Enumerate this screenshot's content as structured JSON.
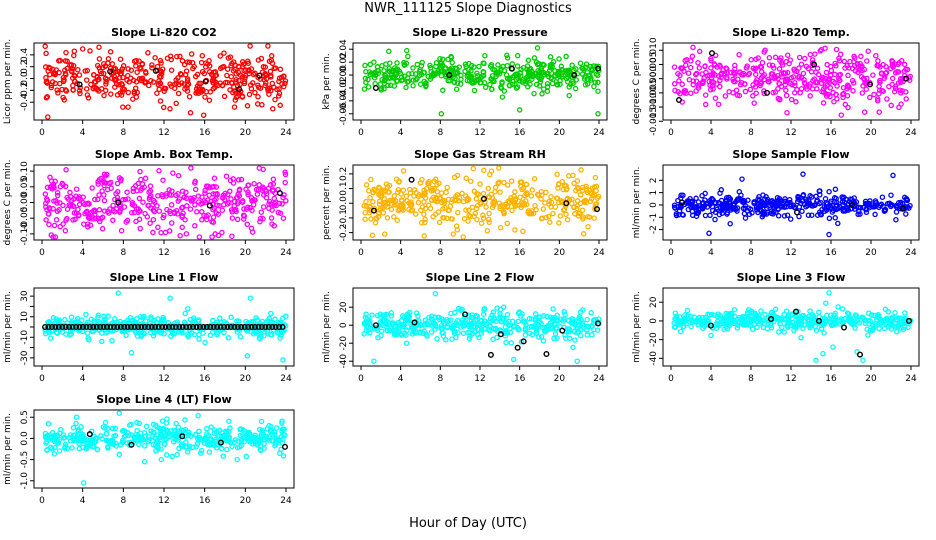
{
  "title": "NWR_111125  Slope Diagnostics",
  "xlabel": "Hour of Day (UTC)",
  "chart_data": [
    {
      "type": "scatter",
      "title": "Slope Li-820 CO2",
      "ylabel": "Licor ppm per min.",
      "color": "#ff0000",
      "xlim": [
        0,
        24
      ],
      "xticks": [
        0,
        4,
        8,
        12,
        16,
        20,
        24
      ],
      "ylim": [
        -0.65,
        0.55
      ],
      "yticks": [
        -0.4,
        -0.2,
        0.0,
        0.2,
        0.4
      ],
      "ytick_labels": [
        "-0.4",
        "-0.2",
        "0.0",
        "0.2",
        "0.4"
      ],
      "spread": 0.2,
      "clip": [
        -0.65,
        0.55
      ],
      "outliers": [
        {
          "x": 4,
          "y": 0.5
        },
        {
          "x": 15.9,
          "y": -0.62
        },
        {
          "x": 13.2,
          "y": -0.42
        }
      ],
      "black": [
        {
          "x": 3.7,
          "y": -0.1
        },
        {
          "x": 6.7,
          "y": 0.12
        },
        {
          "x": 11.2,
          "y": 0.13
        },
        {
          "x": 16.1,
          "y": -0.05
        },
        {
          "x": 19.4,
          "y": -0.18
        },
        {
          "x": 21.4,
          "y": 0.05
        }
      ]
    },
    {
      "type": "scatter",
      "title": "Slope Li-820 Pressure",
      "ylabel": "kPa per min.",
      "color": "#00cc00",
      "xlim": [
        0,
        24
      ],
      "xticks": [
        0,
        4,
        8,
        12,
        16,
        20,
        24
      ],
      "ylim": [
        -0.065,
        0.045
      ],
      "yticks": [
        -0.06,
        -0.04,
        -0.02,
        0.0,
        0.02,
        0.04
      ],
      "ytick_labels": [
        "-0.06",
        "-0.04",
        "-0.02",
        "0.00",
        "0.02",
        "0.04"
      ],
      "spread": 0.012,
      "clip": [
        -0.065,
        0.045
      ],
      "outliers": [
        {
          "x": 17.8,
          "y": 0.042
        },
        {
          "x": 8.1,
          "y": -0.06
        },
        {
          "x": 16,
          "y": -0.054
        },
        {
          "x": 23.9,
          "y": -0.06
        },
        {
          "x": 15.8,
          "y": 0.03
        }
      ],
      "black": [
        {
          "x": 1.5,
          "y": -0.02
        },
        {
          "x": 8.9,
          "y": 0.0
        },
        {
          "x": 15.2,
          "y": 0.01
        },
        {
          "x": 21.5,
          "y": 0.0
        },
        {
          "x": 23.9,
          "y": 0.01
        }
      ]
    },
    {
      "type": "scatter",
      "title": "Slope Li-820 Temp.",
      "ylabel": "degrees C per min.",
      "color": "#ff00ff",
      "xlim": [
        0,
        24
      ],
      "xticks": [
        0,
        4,
        8,
        12,
        16,
        20,
        24
      ],
      "ylim": [
        -0.0135,
        0.0115
      ],
      "yticks": [
        -0.015,
        -0.01,
        -0.005,
        0.0,
        0.005,
        0.01
      ],
      "ytick_labels": [
        "-0.015",
        "-0.010",
        "-0.005",
        "0.000",
        "0.005",
        "0.010"
      ],
      "spread": 0.0045,
      "clip": [
        -0.0135,
        0.0115
      ],
      "outliers": [
        {
          "x": 11.6,
          "y": -0.012
        },
        {
          "x": 2.2,
          "y": 0.011
        }
      ],
      "black": [
        {
          "x": 0.8,
          "y": -0.0075
        },
        {
          "x": 4.1,
          "y": 0.009
        },
        {
          "x": 9.6,
          "y": -0.005
        },
        {
          "x": 14.3,
          "y": 0.005
        },
        {
          "x": 19.9,
          "y": -0.002
        },
        {
          "x": 23.5,
          "y": 0.0
        }
      ]
    },
    {
      "type": "scatter",
      "title": "Slope Amb. Box Temp.",
      "ylabel": "degrees C per min.",
      "color": "#ff00ff",
      "xlim": [
        0,
        24
      ],
      "xticks": [
        0,
        4,
        8,
        12,
        16,
        20,
        24
      ],
      "ylim": [
        -0.11,
        0.11
      ],
      "yticks": [
        -0.1,
        -0.05,
        0.0,
        0.05,
        0.1
      ],
      "ytick_labels": [
        "-0.10",
        "-0.05",
        "0.00",
        "0.05",
        "0.10"
      ],
      "spread": 0.045,
      "clip": [
        -0.11,
        0.11
      ],
      "outliers": [
        {
          "x": 14.2,
          "y": -0.1
        },
        {
          "x": 2.3,
          "y": -0.09
        }
      ],
      "black": [
        {
          "x": 7.5,
          "y": 0.0
        },
        {
          "x": 16.5,
          "y": -0.01
        },
        {
          "x": 23.4,
          "y": 0.03
        }
      ]
    },
    {
      "type": "scatter",
      "title": "Slope Gas Stream RH",
      "ylabel": "percent per min.",
      "color": "#ffb300",
      "xlim": [
        0,
        24
      ],
      "xticks": [
        0,
        4,
        8,
        12,
        16,
        20,
        24
      ],
      "ylim": [
        -0.23,
        0.24
      ],
      "yticks": [
        -0.2,
        -0.1,
        0.0,
        0.1,
        0.2
      ],
      "ytick_labels": [
        "-0.2",
        "-0.1",
        "0.0",
        "0.1",
        "0.2"
      ],
      "spread": 0.09,
      "clip": [
        -0.23,
        0.24
      ],
      "outliers": [
        {
          "x": 4.3,
          "y": 0.22
        },
        {
          "x": 2.4,
          "y": -0.21
        },
        {
          "x": 9.3,
          "y": -0.21
        }
      ],
      "black": [
        {
          "x": 1.3,
          "y": -0.05
        },
        {
          "x": 5.1,
          "y": 0.16
        },
        {
          "x": 12.4,
          "y": 0.03
        },
        {
          "x": 20.7,
          "y": 0.0
        },
        {
          "x": 23.8,
          "y": -0.04
        }
      ]
    },
    {
      "type": "scatter",
      "title": "Slope Sample Flow",
      "ylabel": "ml/min per min.",
      "color": "#0000ff",
      "xlim": [
        0,
        24
      ],
      "xticks": [
        0,
        4,
        8,
        12,
        16,
        20,
        24
      ],
      "ylim": [
        -2.6,
        3.0
      ],
      "yticks": [
        -2,
        -1,
        0,
        1,
        2
      ],
      "ytick_labels": [
        "-2",
        "-1",
        "0",
        "1",
        "2"
      ],
      "spread": 0.45,
      "clip": [
        -2.6,
        3.0
      ],
      "outliers": [
        {
          "x": 3.8,
          "y": -2.3
        },
        {
          "x": 15.8,
          "y": -2.4
        },
        {
          "x": 7.1,
          "y": 2.1
        },
        {
          "x": 22.2,
          "y": 2.4
        },
        {
          "x": 13.2,
          "y": 2.5
        }
      ],
      "black": [
        {
          "x": 1.1,
          "y": 0.2
        },
        {
          "x": 12.6,
          "y": -0.6
        },
        {
          "x": 18.1,
          "y": 0.0
        },
        {
          "x": 23.2,
          "y": -0.3
        }
      ]
    },
    {
      "type": "scatter",
      "title": "Slope Line 1 Flow",
      "ylabel": "ml/min per min.",
      "color": "#00ffff",
      "xlim": [
        0,
        24
      ],
      "xticks": [
        0,
        4,
        8,
        12,
        16,
        20,
        24
      ],
      "ylim": [
        -35,
        35
      ],
      "yticks": [
        -30,
        -20,
        -10,
        0,
        10,
        20,
        30
      ],
      "ytick_labels": [
        "-30",
        "",
        "-10",
        "",
        "10",
        "",
        "30"
      ],
      "spread": 5,
      "clip": [
        -35,
        35
      ],
      "outliers": [
        {
          "x": 7.5,
          "y": 33
        },
        {
          "x": 8.8,
          "y": -25
        },
        {
          "x": 23.7,
          "y": -32
        },
        {
          "x": 20.5,
          "y": 28
        },
        {
          "x": 12.6,
          "y": 28
        },
        {
          "x": 20.2,
          "y": -28
        }
      ],
      "black": [],
      "blackline": {
        "y": 0,
        "n": 70
      }
    },
    {
      "type": "scatter",
      "title": "Slope Line 2 Flow",
      "ylabel": "ml/min per min.",
      "color": "#00ffff",
      "xlim": [
        0,
        24
      ],
      "xticks": [
        0,
        4,
        8,
        12,
        16,
        20,
        24
      ],
      "ylim": [
        -42,
        38
      ],
      "yticks": [
        -40,
        -20,
        0,
        20
      ],
      "ytick_labels": [
        "-40",
        "-20",
        "0",
        "20"
      ],
      "spread": 8,
      "clip": [
        -42,
        38
      ],
      "outliers": [
        {
          "x": 7.5,
          "y": 35
        },
        {
          "x": 1.3,
          "y": -40
        },
        {
          "x": 15.4,
          "y": -38
        },
        {
          "x": 21.8,
          "y": -40
        }
      ],
      "black": [
        {
          "x": 13.1,
          "y": -33
        },
        {
          "x": 15.8,
          "y": -25
        },
        {
          "x": 18.7,
          "y": -32
        },
        {
          "x": 10.5,
          "y": 12
        },
        {
          "x": 14.1,
          "y": -10
        },
        {
          "x": 16.4,
          "y": -18
        },
        {
          "x": 20.3,
          "y": -6
        },
        {
          "x": 23.9,
          "y": 2
        },
        {
          "x": 5.4,
          "y": 3
        },
        {
          "x": 1.5,
          "y": 0
        }
      ]
    },
    {
      "type": "scatter",
      "title": "Slope Line 3 Flow",
      "ylabel": "ml/min per min.",
      "color": "#00ffff",
      "xlim": [
        0,
        24
      ],
      "xticks": [
        0,
        4,
        8,
        12,
        16,
        20,
        24
      ],
      "ylim": [
        -45,
        32
      ],
      "yticks": [
        -40,
        -20,
        0,
        20
      ],
      "ytick_labels": [
        "-40",
        "-20",
        "0",
        "20"
      ],
      "spread": 5,
      "clip": [
        -45,
        32
      ],
      "outliers": [
        {
          "x": 15.8,
          "y": 30
        },
        {
          "x": 14.5,
          "y": -42
        },
        {
          "x": 15.2,
          "y": -35
        },
        {
          "x": 16.2,
          "y": -28
        },
        {
          "x": 18.6,
          "y": -33
        },
        {
          "x": 19.2,
          "y": -42
        },
        {
          "x": 13,
          "y": -18
        },
        {
          "x": 16.7,
          "y": 15
        }
      ],
      "black": [
        {
          "x": 4,
          "y": -5
        },
        {
          "x": 12.5,
          "y": 10
        },
        {
          "x": 14.8,
          "y": 0
        },
        {
          "x": 18.9,
          "y": -36
        },
        {
          "x": 17.3,
          "y": -7
        },
        {
          "x": 10,
          "y": 2
        },
        {
          "x": 23.8,
          "y": 0
        }
      ]
    },
    {
      "type": "scatter",
      "title": "Slope Line 4 (LT) Flow",
      "ylabel": "ml/min per min.",
      "color": "#00ffff",
      "xlim": [
        0,
        24
      ],
      "xticks": [
        0,
        4,
        8,
        12,
        16,
        20,
        24
      ],
      "ylim": [
        -1.1,
        0.6
      ],
      "yticks": [
        -1.0,
        -0.5,
        0.0,
        0.5
      ],
      "ytick_labels": [
        "-1.0",
        "-0.5",
        "0.0",
        "0.5"
      ],
      "spread": 0.18,
      "clip": [
        -1.1,
        0.6
      ],
      "outliers": [
        {
          "x": 4.1,
          "y": -1.05
        },
        {
          "x": 3.4,
          "y": 0.5
        },
        {
          "x": 10.1,
          "y": -0.55
        },
        {
          "x": 19.2,
          "y": -0.5
        },
        {
          "x": 21.6,
          "y": 0.4
        }
      ],
      "black": [
        {
          "x": 4.7,
          "y": 0.1
        },
        {
          "x": 8.8,
          "y": -0.15
        },
        {
          "x": 13.8,
          "y": 0.05
        },
        {
          "x": 17.6,
          "y": -0.1
        },
        {
          "x": 23.9,
          "y": -0.2
        }
      ]
    }
  ]
}
